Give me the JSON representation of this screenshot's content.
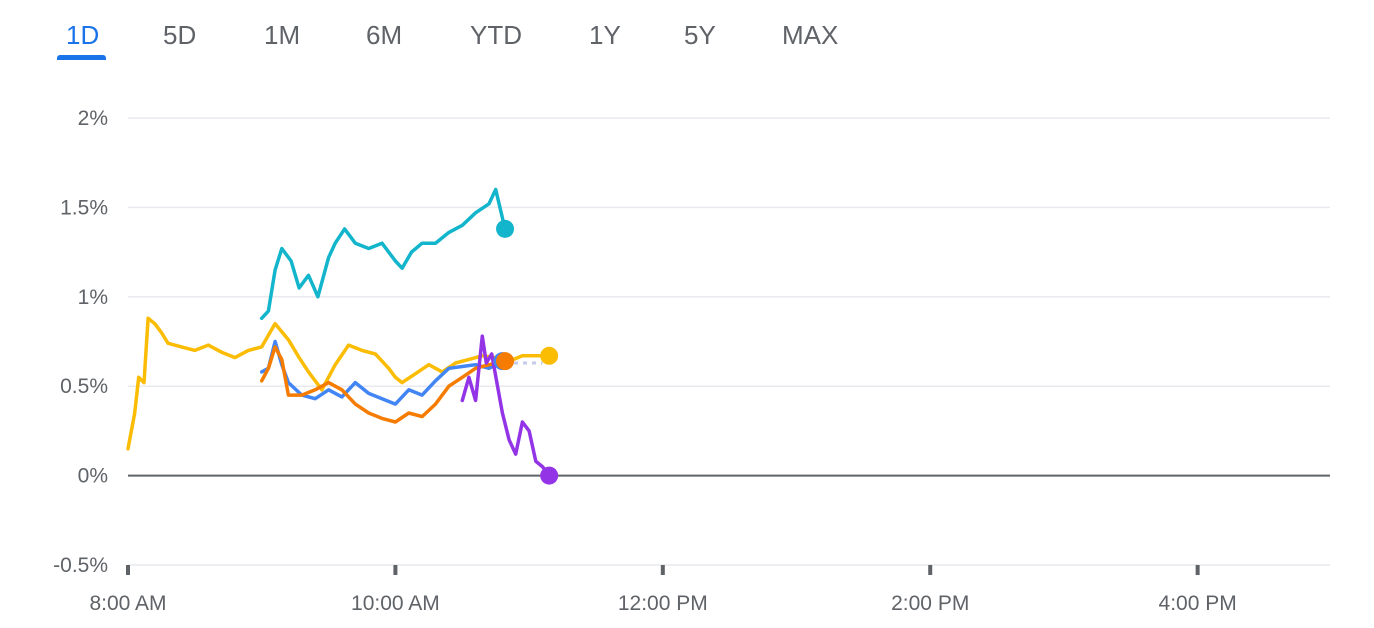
{
  "tabs": [
    {
      "label": "1D",
      "active": true
    },
    {
      "label": "5D",
      "active": false
    },
    {
      "label": "1M",
      "active": false
    },
    {
      "label": "6M",
      "active": false
    },
    {
      "label": "YTD",
      "active": false
    },
    {
      "label": "1Y",
      "active": false
    },
    {
      "label": "5Y",
      "active": false
    },
    {
      "label": "MAX",
      "active": false
    }
  ],
  "colors": {
    "accent": "#1a73e8",
    "grid": "#e8eaed",
    "baseline": "#5f6368",
    "label": "#5f6368"
  },
  "chart_data": {
    "type": "line",
    "title": "",
    "xlabel": "",
    "ylabel": "",
    "x_unit": "hours",
    "xlim": [
      8,
      16.99
    ],
    "ylim": [
      -0.5,
      2
    ],
    "yticks": [
      2,
      1.5,
      1,
      0.5,
      0,
      -0.5
    ],
    "ytick_labels": [
      "2%",
      "1.5%",
      "1%",
      "0.5%",
      "0%",
      "-0.5%"
    ],
    "xticks": [
      8,
      10,
      12,
      14,
      16
    ],
    "xtick_labels": [
      "8:00 AM",
      "10:00 AM",
      "12:00 PM",
      "2:00 PM",
      "4:00 PM"
    ],
    "grid": true,
    "baseline": 0,
    "series": [
      {
        "color": "#fbbc04",
        "x": [
          8.0,
          8.05,
          8.08,
          8.12,
          8.15,
          8.2,
          8.25,
          8.3,
          8.4,
          8.5,
          8.6,
          8.7,
          8.8,
          8.9,
          9.0,
          9.1,
          9.2,
          9.28,
          9.35,
          9.45,
          9.55,
          9.65,
          9.75,
          9.85,
          9.95,
          10.0,
          10.05,
          10.15,
          10.25,
          10.35,
          10.45,
          10.55,
          10.65,
          10.75,
          10.85,
          10.95,
          11.1,
          11.15
        ],
        "y": [
          0.15,
          0.35,
          0.55,
          0.52,
          0.88,
          0.85,
          0.8,
          0.74,
          0.72,
          0.7,
          0.73,
          0.69,
          0.66,
          0.7,
          0.72,
          0.85,
          0.76,
          0.66,
          0.58,
          0.48,
          0.62,
          0.73,
          0.7,
          0.68,
          0.6,
          0.55,
          0.52,
          0.57,
          0.62,
          0.58,
          0.63,
          0.65,
          0.67,
          0.66,
          0.64,
          0.67,
          0.67,
          0.67
        ]
      },
      {
        "color": "#12b5cb",
        "x": [
          9.0,
          9.05,
          9.1,
          9.15,
          9.22,
          9.28,
          9.35,
          9.42,
          9.5,
          9.55,
          9.62,
          9.7,
          9.8,
          9.9,
          10.0,
          10.05,
          10.12,
          10.2,
          10.3,
          10.4,
          10.5,
          10.6,
          10.7,
          10.75,
          10.82
        ],
        "y": [
          0.88,
          0.92,
          1.15,
          1.27,
          1.2,
          1.05,
          1.12,
          1.0,
          1.22,
          1.3,
          1.38,
          1.3,
          1.27,
          1.3,
          1.2,
          1.16,
          1.25,
          1.3,
          1.3,
          1.36,
          1.4,
          1.47,
          1.52,
          1.6,
          1.38
        ]
      },
      {
        "color": "#4285f4",
        "x": [
          9.0,
          9.05,
          9.1,
          9.15,
          9.2,
          9.3,
          9.4,
          9.5,
          9.6,
          9.7,
          9.8,
          9.9,
          10.0,
          10.1,
          10.2,
          10.3,
          10.4,
          10.5,
          10.6,
          10.7,
          10.8
        ],
        "y": [
          0.58,
          0.6,
          0.75,
          0.62,
          0.52,
          0.45,
          0.43,
          0.48,
          0.44,
          0.52,
          0.46,
          0.43,
          0.4,
          0.48,
          0.45,
          0.53,
          0.6,
          0.61,
          0.62,
          0.6,
          0.64
        ]
      },
      {
        "color": "#f57c00",
        "x": [
          9.0,
          9.05,
          9.1,
          9.15,
          9.2,
          9.3,
          9.4,
          9.5,
          9.6,
          9.7,
          9.8,
          9.9,
          10.0,
          10.1,
          10.2,
          10.3,
          10.4,
          10.5,
          10.6,
          10.7,
          10.82
        ],
        "y": [
          0.53,
          0.6,
          0.72,
          0.65,
          0.45,
          0.45,
          0.48,
          0.52,
          0.48,
          0.4,
          0.35,
          0.32,
          0.3,
          0.35,
          0.33,
          0.4,
          0.5,
          0.55,
          0.6,
          0.62,
          0.64
        ]
      },
      {
        "color": "#9334e6",
        "x": [
          10.5,
          10.55,
          10.6,
          10.65,
          10.68,
          10.72,
          10.8,
          10.85,
          10.9,
          10.95,
          11.0,
          11.05,
          11.1,
          11.15
        ],
        "y": [
          0.42,
          0.55,
          0.42,
          0.78,
          0.63,
          0.68,
          0.35,
          0.2,
          0.12,
          0.3,
          0.25,
          0.08,
          0.05,
          0.0
        ]
      }
    ]
  }
}
